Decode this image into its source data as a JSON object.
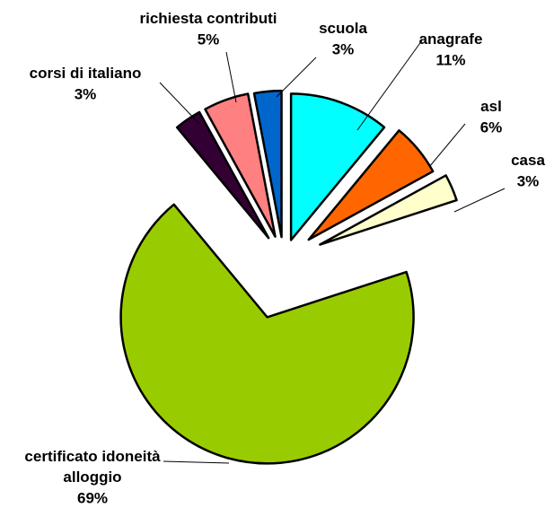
{
  "chart_data": {
    "type": "pie",
    "categories": [
      "anagrafe",
      "asl",
      "casa",
      "certificato idoneità alloggio",
      "corsi di italiano",
      "richiesta contributi",
      "scuola"
    ],
    "values": [
      11,
      6,
      3,
      69,
      3,
      5,
      3
    ],
    "value_labels": [
      "11%",
      "6%",
      "3%",
      "69%",
      "3%",
      "5%",
      "3%"
    ],
    "colors": [
      "#00ffff",
      "#ff6600",
      "#ffffcc",
      "#99cc00",
      "#330033",
      "#ff8080",
      "#0066cc"
    ]
  }
}
